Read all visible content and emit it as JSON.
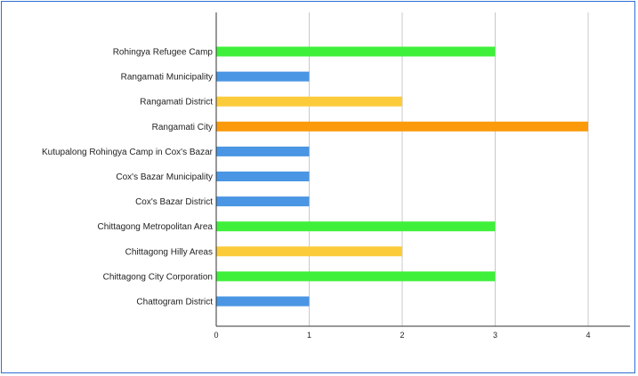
{
  "chart_data": {
    "type": "bar",
    "orientation": "horizontal",
    "title": "",
    "xlabel": "",
    "ylabel": "",
    "categories": [
      "Rohingya Refugee Camp",
      "Rangamati Municipality",
      "Rangamati District",
      "Rangamati City",
      "Kutupalong Rohingya Camp in Cox's Bazar",
      "Cox's Bazar Municipality",
      "Cox's Bazar District",
      "Chittagong Metropolitan Area",
      "Chittagong Hilly Areas",
      "Chittagong City Corporation",
      "Chattogram District"
    ],
    "values": [
      3,
      1,
      2,
      4,
      1,
      1,
      1,
      3,
      2,
      3,
      1
    ],
    "bar_colors": [
      "#3ff03a",
      "#4a96e4",
      "#fccb3a",
      "#fb9b0c",
      "#4a96e4",
      "#4a96e4",
      "#4a96e4",
      "#3ff03a",
      "#fccb3a",
      "#3ff03a",
      "#4a96e4"
    ],
    "xlim": [
      0,
      4.4
    ],
    "xticks": [
      "0",
      "1",
      "2",
      "3",
      "4"
    ],
    "grid": true,
    "legend": "none"
  },
  "colors": {
    "frame_border": "#2f6fd6",
    "gridline": "#c8c8c8",
    "axis": "#333333"
  }
}
